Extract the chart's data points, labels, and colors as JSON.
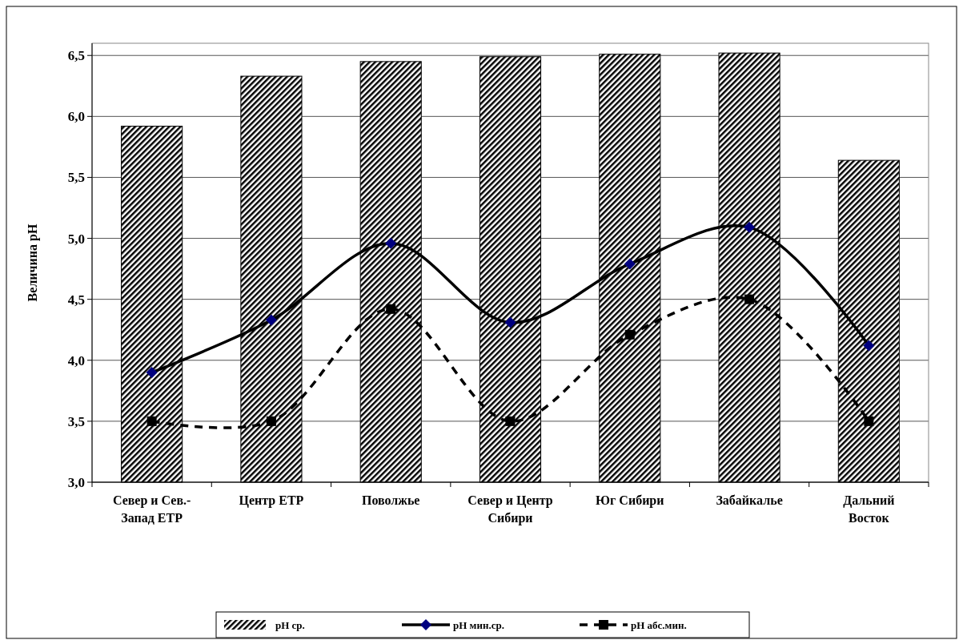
{
  "chart_data": {
    "type": "bar",
    "ylabel": "Величина рН",
    "categories": [
      "Север и Сев.-Запад ЕТР",
      "Центр ЕТР",
      "Поволжье",
      "Север и Центр Сибири",
      "Юг Сибири",
      "Забайкалье",
      "Дальний Восток"
    ],
    "series": [
      {
        "name": "рН ср.",
        "color": "#000000",
        "values": [
          5.92,
          6.33,
          6.45,
          6.49,
          6.51,
          6.52,
          5.64
        ]
      },
      {
        "name": "рН мин.ср.",
        "type": "line",
        "color": "#000000",
        "marker": "diamond",
        "line_style": "solid",
        "values": [
          3.9,
          4.33,
          4.96,
          4.31,
          4.79,
          5.09,
          4.12
        ]
      },
      {
        "name": "рН абс.мин.",
        "type": "line",
        "color": "#000000",
        "marker": "square",
        "line_style": "dashed",
        "values": [
          3.5,
          3.5,
          4.42,
          3.5,
          4.21,
          4.5,
          3.5
        ]
      }
    ],
    "ylim": [
      3,
      6.6
    ],
    "yticks": [
      {
        "value": 3,
        "label": "3,0"
      },
      {
        "value": 3.5,
        "label": "3,5"
      },
      {
        "value": 4,
        "label": "4,0"
      },
      {
        "value": 4.5,
        "label": "4,5"
      },
      {
        "value": 5,
        "label": "5,0"
      },
      {
        "value": 5.5,
        "label": "5,5"
      },
      {
        "value": 6,
        "label": "6,0"
      },
      {
        "value": 6.5,
        "label": "6,5"
      }
    ],
    "grid": "y",
    "legend": "bottom"
  }
}
